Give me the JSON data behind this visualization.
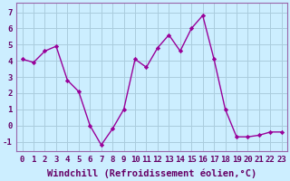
{
  "x": [
    0,
    1,
    2,
    3,
    4,
    5,
    6,
    7,
    8,
    9,
    10,
    11,
    12,
    13,
    14,
    15,
    16,
    17,
    18,
    19,
    20,
    21,
    22,
    23
  ],
  "y": [
    4.1,
    3.9,
    4.6,
    4.9,
    2.8,
    2.1,
    0.0,
    -1.2,
    -0.2,
    1.0,
    4.1,
    3.6,
    4.8,
    5.6,
    4.6,
    6.0,
    6.8,
    4.1,
    1.0,
    -0.7,
    -0.7,
    -0.6,
    -0.4,
    -0.4
  ],
  "line_color": "#990099",
  "marker": "D",
  "marker_size": 2.2,
  "bg_color": "#cceeff",
  "grid_color": "#aaccdd",
  "xlabel": "Windchill (Refroidissement éolien,°C)",
  "xlabel_color": "#660066",
  "xlabel_fontsize": 7.5,
  "ylabel_ticks": [
    -1,
    0,
    1,
    2,
    3,
    4,
    5,
    6,
    7
  ],
  "xlim": [
    -0.5,
    23.5
  ],
  "ylim": [
    -1.6,
    7.6
  ],
  "tick_fontsize": 6.5,
  "axis_label_color": "#660066",
  "spine_color": "#9966aa",
  "line_width": 1.0
}
